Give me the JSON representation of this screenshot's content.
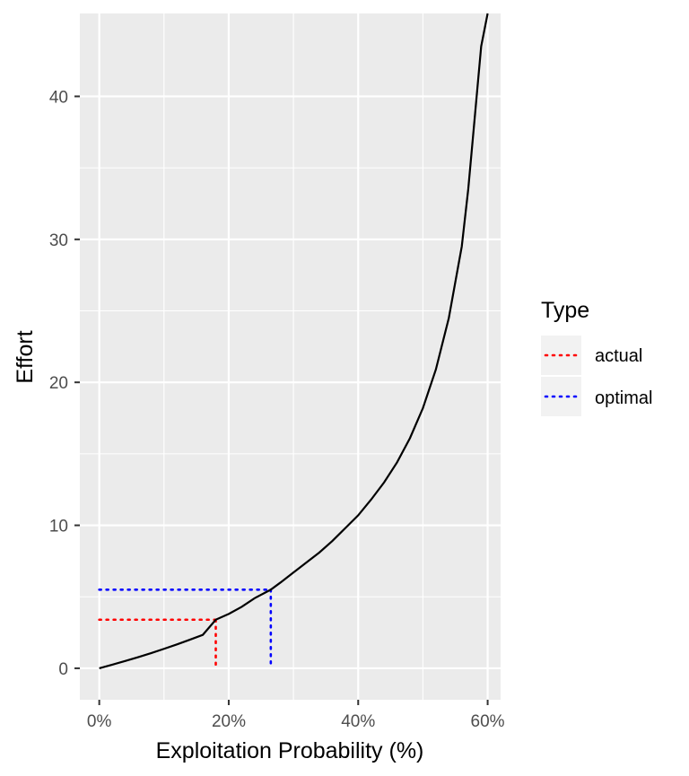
{
  "chart_data": {
    "type": "line",
    "xlabel": "Exploitation Probability (%)",
    "ylabel": "Effort",
    "xlim": [
      -0.03,
      0.62
    ],
    "ylim": [
      -2.2,
      45.8
    ],
    "x_ticks": [
      0,
      0.2,
      0.4,
      0.6
    ],
    "x_tick_labels": [
      "0%",
      "20%",
      "40%",
      "60%"
    ],
    "y_ticks": [
      0,
      10,
      20,
      30,
      40
    ],
    "y_tick_labels": [
      "0",
      "10",
      "20",
      "30",
      "40"
    ],
    "grid": true,
    "curve": {
      "color": "#000000",
      "points": [
        [
          0,
          0
        ],
        [
          0.02,
          0.25
        ],
        [
          0.04,
          0.51
        ],
        [
          0.06,
          0.78
        ],
        [
          0.08,
          1.06
        ],
        [
          0.1,
          1.36
        ],
        [
          0.12,
          1.67
        ],
        [
          0.14,
          2.0
        ],
        [
          0.16,
          2.34
        ],
        [
          0.18,
          3.4
        ],
        [
          0.2,
          3.8
        ],
        [
          0.22,
          4.3
        ],
        [
          0.24,
          4.9
        ],
        [
          0.265,
          5.5
        ],
        [
          0.28,
          6.0
        ],
        [
          0.3,
          6.7
        ],
        [
          0.32,
          7.4
        ],
        [
          0.34,
          8.1
        ],
        [
          0.36,
          8.9
        ],
        [
          0.38,
          9.8
        ],
        [
          0.4,
          10.7
        ],
        [
          0.42,
          11.8
        ],
        [
          0.44,
          13.0
        ],
        [
          0.46,
          14.4
        ],
        [
          0.48,
          16.1
        ],
        [
          0.5,
          18.2
        ],
        [
          0.52,
          20.9
        ],
        [
          0.54,
          24.5
        ],
        [
          0.56,
          29.5
        ],
        [
          0.57,
          33.5
        ],
        [
          0.58,
          38.5
        ],
        [
          0.59,
          43.5
        ],
        [
          0.6,
          45.8
        ]
      ]
    },
    "series": [
      {
        "name": "actual",
        "color": "#ff0000",
        "x": 0.18,
        "y": 3.4
      },
      {
        "name": "optimal",
        "color": "#0000ff",
        "x": 0.265,
        "y": 5.5
      }
    ],
    "legend": {
      "title": "Type",
      "position": "right"
    }
  }
}
